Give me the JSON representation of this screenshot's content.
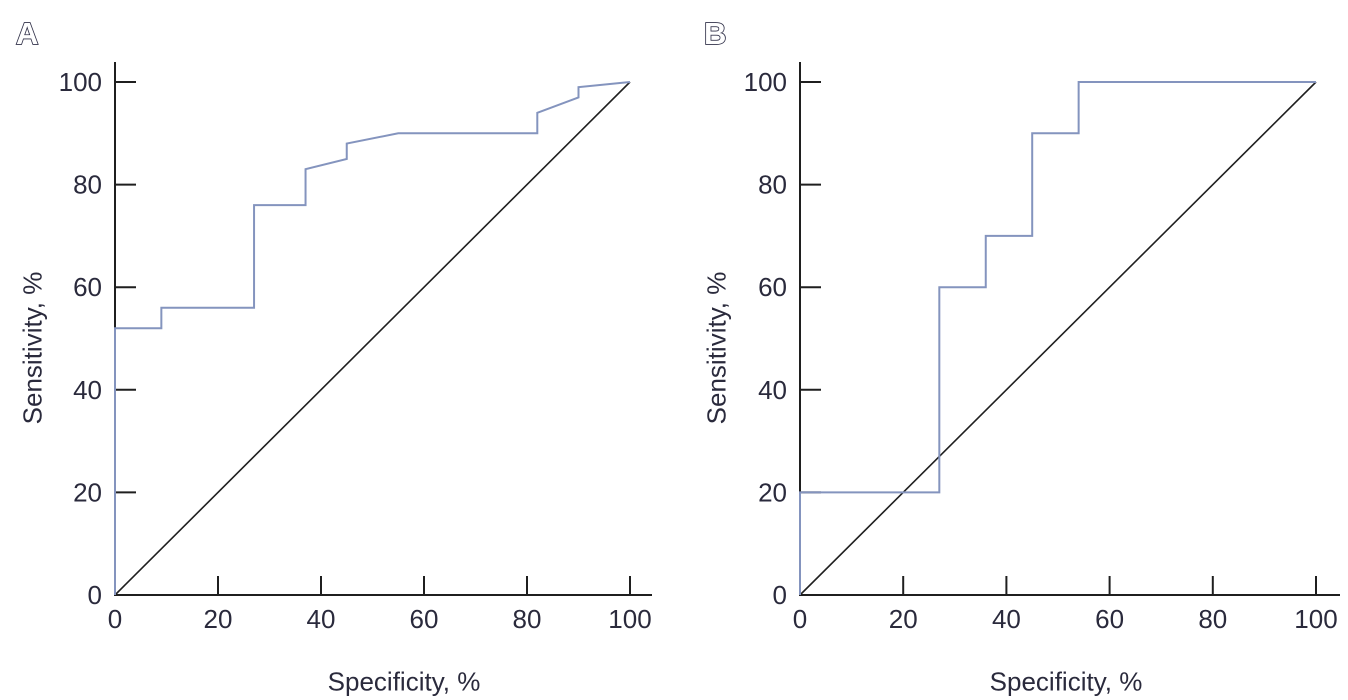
{
  "page": {
    "background": "#ffffff"
  },
  "panels": [
    {
      "id": "A",
      "label": "A",
      "xlabel": "Specificity, %",
      "ylabel": "Sensitivity, %"
    },
    {
      "id": "B",
      "label": "B",
      "xlabel": "Specificity, %",
      "ylabel": "Sensitivity, %"
    }
  ],
  "chart_data": [
    {
      "type": "line",
      "panel": "A",
      "subtype": "roc-step-curve",
      "title": "",
      "xlabel": "Specificity, %",
      "ylabel": "Sensitivity, %",
      "xlim": [
        0,
        100
      ],
      "ylim": [
        0,
        100
      ],
      "xticks": [
        0,
        20,
        40,
        60,
        80,
        100
      ],
      "yticks": [
        0,
        20,
        40,
        60,
        80,
        100
      ],
      "grid": false,
      "legend": "none",
      "axis_color": "#1f1f1f",
      "text_color": "#2a2a3c",
      "series": [
        {
          "name": "reference-diagonal",
          "color": "#1f1f1f",
          "width": 1.6,
          "points": [
            [
              0,
              0
            ],
            [
              100,
              100
            ]
          ]
        },
        {
          "name": "roc-curve",
          "color": "#8494be",
          "width": 2,
          "points": [
            [
              0,
              0
            ],
            [
              0,
              52
            ],
            [
              9,
              52
            ],
            [
              9,
              56
            ],
            [
              27,
              56
            ],
            [
              27,
              76
            ],
            [
              37,
              76
            ],
            [
              37,
              83
            ],
            [
              45,
              85
            ],
            [
              45,
              88
            ],
            [
              55,
              90
            ],
            [
              82,
              90
            ],
            [
              82,
              94
            ],
            [
              90,
              97
            ],
            [
              90,
              99
            ],
            [
              100,
              100
            ]
          ]
        }
      ]
    },
    {
      "type": "line",
      "panel": "B",
      "subtype": "roc-step-curve",
      "title": "",
      "xlabel": "Specificity, %",
      "ylabel": "Sensitivity, %",
      "xlim": [
        0,
        100
      ],
      "ylim": [
        0,
        100
      ],
      "xticks": [
        0,
        20,
        40,
        60,
        80,
        100
      ],
      "yticks": [
        0,
        20,
        40,
        60,
        80,
        100
      ],
      "grid": false,
      "legend": "none",
      "axis_color": "#1f1f1f",
      "text_color": "#2a2a3c",
      "series": [
        {
          "name": "reference-diagonal",
          "color": "#1f1f1f",
          "width": 1.6,
          "points": [
            [
              0,
              0
            ],
            [
              100,
              100
            ]
          ]
        },
        {
          "name": "roc-curve",
          "color": "#8494be",
          "width": 2,
          "points": [
            [
              0,
              0
            ],
            [
              0,
              20
            ],
            [
              27,
              20
            ],
            [
              27,
              60
            ],
            [
              36,
              60
            ],
            [
              36,
              70
            ],
            [
              45,
              70
            ],
            [
              45,
              90
            ],
            [
              54,
              90
            ],
            [
              54,
              100
            ],
            [
              100,
              100
            ]
          ]
        }
      ]
    }
  ]
}
